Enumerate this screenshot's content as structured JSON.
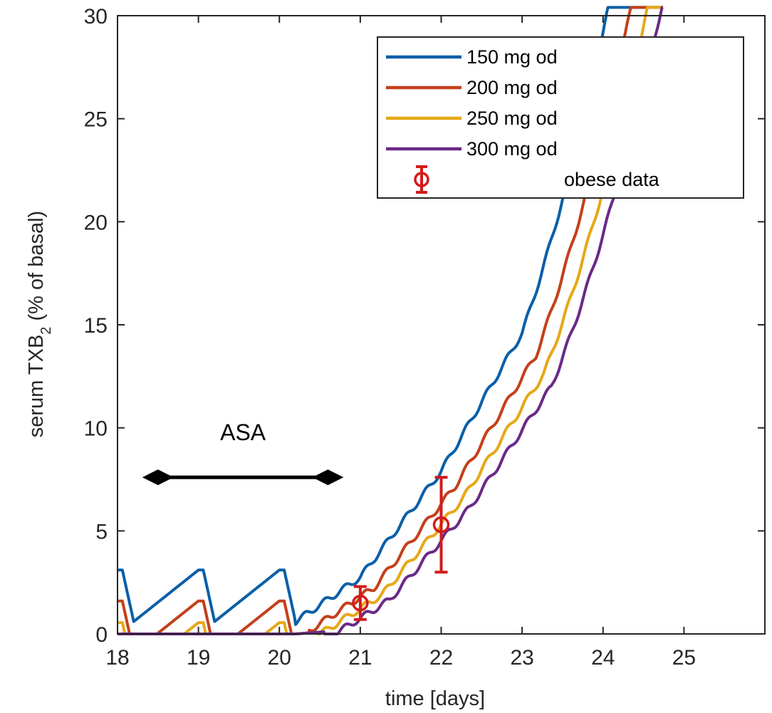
{
  "chart_data": {
    "type": "line",
    "title": "",
    "xlabel": "time [days]",
    "ylabel_main": "serum TXB",
    "ylabel_sub": "2",
    "ylabel_tail": " (% of basal)",
    "xlim": [
      18,
      26
    ],
    "ylim": [
      0,
      30
    ],
    "x_ticks": [
      18,
      19,
      20,
      21,
      22,
      23,
      24,
      25
    ],
    "y_ticks": [
      0,
      5,
      10,
      15,
      20,
      25,
      30
    ],
    "grid": false,
    "legend_position": "top-right",
    "dose_times": [
      18,
      19,
      20
    ],
    "recovery_end": 24.7,
    "series": [
      {
        "name": "150 mg od",
        "color": "#0b5fa8",
        "peak": 3.1,
        "trough": 0.6,
        "onset_delay": 0.0,
        "value_at_22": 7.9,
        "value_at_23": 14.6,
        "value_at_24": 26.0
      },
      {
        "name": "200 mg od",
        "color": "#c4401a",
        "peak": 1.6,
        "trough": 0.0,
        "onset_delay": 0.17,
        "value_at_22": 6.3,
        "value_at_23": 12.6,
        "value_at_24": 23.3
      },
      {
        "name": "250 mg od",
        "color": "#e6a817",
        "peak": 0.55,
        "trough": 0.0,
        "onset_delay": 0.27,
        "value_at_22": 4.9,
        "value_at_23": 11.3,
        "value_at_24": 22.0
      },
      {
        "name": "300 mg od",
        "color": "#6a2a88",
        "peak": 0.0,
        "trough": 0.0,
        "onset_delay": 0.36,
        "value_at_22": 3.9,
        "value_at_23": 10.1,
        "value_at_24": 20.5
      }
    ],
    "data_series": {
      "name": "obese data",
      "color": "#d01c1c",
      "points": [
        {
          "x": 21.0,
          "y": 1.5,
          "low": 0.7,
          "high": 2.3
        },
        {
          "x": 22.0,
          "y": 5.3,
          "low": 3.0,
          "high": 7.6
        }
      ]
    },
    "annotation": {
      "text": "ASA",
      "x_start": 18.5,
      "x_end": 20.6,
      "y": 7.6
    }
  }
}
